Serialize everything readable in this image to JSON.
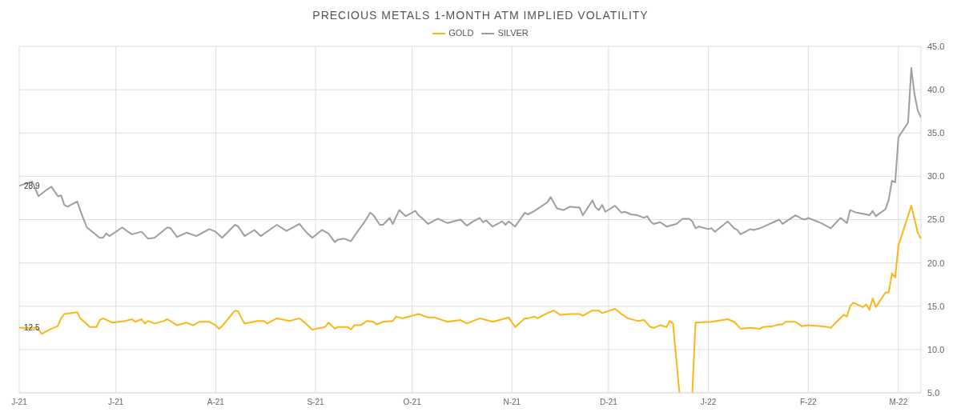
{
  "chart_data": {
    "type": "line",
    "title": "PRECIOUS METALS 1-MONTH ATM IMPLIED VOLATILITY",
    "legend": "top",
    "grid": true,
    "xlim": [
      "2021-06-01",
      "2022-03-08"
    ],
    "xticks": [
      {
        "value": "2021-06-01",
        "label": "J-21"
      },
      {
        "value": "2021-07-01",
        "label": "J-21"
      },
      {
        "value": "2021-08-01",
        "label": "A-21"
      },
      {
        "value": "2021-09-01",
        "label": "S-21"
      },
      {
        "value": "2021-10-01",
        "label": "O-21"
      },
      {
        "value": "2021-11-01",
        "label": "N-21"
      },
      {
        "value": "2021-12-01",
        "label": "D-21"
      },
      {
        "value": "2022-01-01",
        "label": "J-22"
      },
      {
        "value": "2022-02-01",
        "label": "F-22"
      },
      {
        "value": "2022-03-01",
        "label": "M-22"
      }
    ],
    "ylim": [
      5,
      45
    ],
    "yticks": [
      {
        "value": 5,
        "label": "5.0"
      },
      {
        "value": 10,
        "label": "10.0"
      },
      {
        "value": 15,
        "label": "15.0"
      },
      {
        "value": 20,
        "label": "20.0"
      },
      {
        "value": 25,
        "label": "25.0"
      },
      {
        "value": 30,
        "label": "30.0"
      },
      {
        "value": 35,
        "label": "35.0"
      },
      {
        "value": 40,
        "label": "40.0"
      },
      {
        "value": 45,
        "label": "45.0"
      }
    ],
    "annotations": [
      {
        "text": "28.9",
        "x": "2021-06-01",
        "y": 28.9
      },
      {
        "text": "12.5",
        "x": "2021-06-01",
        "y": 12.5
      }
    ],
    "series": [
      {
        "name": "GOLD",
        "color": "#fdb515",
        "x": [
          "2021-06-01",
          "2021-06-06",
          "2021-06-07",
          "2021-06-08",
          "2021-06-11",
          "2021-06-13",
          "2021-06-14",
          "2021-06-15",
          "2021-06-19",
          "2021-06-20",
          "2021-06-23",
          "2021-06-25",
          "2021-06-26",
          "2021-06-27",
          "2021-06-30",
          "2021-07-02",
          "2021-07-04",
          "2021-07-06",
          "2021-07-07",
          "2021-07-09",
          "2021-07-10",
          "2021-07-11",
          "2021-07-13",
          "2021-07-16",
          "2021-07-17",
          "2021-07-20",
          "2021-07-23",
          "2021-07-25",
          "2021-07-27",
          "2021-07-30",
          "2021-08-01",
          "2021-08-02",
          "2021-08-03",
          "2021-08-07",
          "2021-08-08",
          "2021-08-09",
          "2021-08-10",
          "2021-08-14",
          "2021-08-16",
          "2021-08-17",
          "2021-08-20",
          "2021-08-24",
          "2021-08-27",
          "2021-08-29",
          "2021-08-31",
          "2021-09-04",
          "2021-09-05",
          "2021-09-07",
          "2021-09-08",
          "2021-09-11",
          "2021-09-12",
          "2021-09-13",
          "2021-09-15",
          "2021-09-17",
          "2021-09-19",
          "2021-09-20",
          "2021-09-22",
          "2021-09-25",
          "2021-09-26",
          "2021-09-28",
          "2021-10-01",
          "2021-10-03",
          "2021-10-06",
          "2021-10-08",
          "2021-10-12",
          "2021-10-16",
          "2021-10-18",
          "2021-10-20",
          "2021-10-22",
          "2021-10-24",
          "2021-10-26",
          "2021-10-29",
          "2021-10-31",
          "2021-11-02",
          "2021-11-05",
          "2021-11-06",
          "2021-11-08",
          "2021-11-09",
          "2021-11-12",
          "2021-11-14",
          "2021-11-16",
          "2021-11-19",
          "2021-11-22",
          "2021-11-23",
          "2021-11-26",
          "2021-11-28",
          "2021-11-29",
          "2021-12-03",
          "2021-12-05",
          "2021-12-07",
          "2021-12-10",
          "2021-12-12",
          "2021-12-14",
          "2021-12-15",
          "2021-12-17",
          "2021-12-19",
          "2021-12-20",
          "2021-12-21",
          "2021-12-23",
          "2021-12-25",
          "2021-12-27",
          "2021-12-28",
          "2022-01-02",
          "2022-01-07",
          "2022-01-09",
          "2022-01-11",
          "2022-01-14",
          "2022-01-17",
          "2022-01-18",
          "2022-01-21",
          "2022-01-23",
          "2022-01-24",
          "2022-01-25",
          "2022-01-28",
          "2022-01-30",
          "2022-02-01",
          "2022-02-05",
          "2022-02-07",
          "2022-02-08",
          "2022-02-12",
          "2022-02-13",
          "2022-02-14",
          "2022-02-15",
          "2022-02-18",
          "2022-02-19",
          "2022-02-20",
          "2022-02-21",
          "2022-02-22",
          "2022-02-25",
          "2022-02-26",
          "2022-02-27",
          "2022-02-28",
          "2022-03-01",
          "2022-03-05",
          "2022-03-07",
          "2022-03-08"
        ],
        "values": [
          12.5,
          12.5,
          12.3,
          11.8,
          12.4,
          12.7,
          13.6,
          14.1,
          14.3,
          13.6,
          12.6,
          12.6,
          13.4,
          13.6,
          13.1,
          13.2,
          13.3,
          13.5,
          13.2,
          13.5,
          13.0,
          13.3,
          13.0,
          13.3,
          13.5,
          12.8,
          13.1,
          12.8,
          13.2,
          13.2,
          12.8,
          12.4,
          12.7,
          14.5,
          14.4,
          13.6,
          13.0,
          13.3,
          13.3,
          13.0,
          13.6,
          13.3,
          13.6,
          13.0,
          12.3,
          12.6,
          13.1,
          12.4,
          12.6,
          12.6,
          12.3,
          12.8,
          12.8,
          13.3,
          13.2,
          12.9,
          13.2,
          13.3,
          13.8,
          13.6,
          13.9,
          14.1,
          13.7,
          13.7,
          13.2,
          13.4,
          13.0,
          13.3,
          13.6,
          13.4,
          13.2,
          13.5,
          13.7,
          12.6,
          13.6,
          13.6,
          13.8,
          13.6,
          14.2,
          14.5,
          14.0,
          14.1,
          14.1,
          13.9,
          14.5,
          14.5,
          14.2,
          14.7,
          14.1,
          13.6,
          13.3,
          13.4,
          12.6,
          12.5,
          12.8,
          12.6,
          13.3,
          13.0,
          5.0,
          null,
          5.0,
          13.1,
          13.2,
          13.5,
          13.2,
          12.4,
          12.5,
          12.4,
          12.6,
          12.7,
          12.9,
          12.9,
          13.2,
          13.2,
          12.7,
          12.8,
          12.7,
          12.6,
          12.5,
          14.0,
          13.8,
          15.0,
          15.4,
          14.9,
          15.2,
          14.6,
          15.9,
          14.9,
          16.6,
          16.6,
          18.8,
          18.3,
          22.0,
          26.6,
          23.5,
          22.8
        ]
      },
      {
        "name": "SILVER",
        "color": "#9e9e9e",
        "x": [
          "2021-06-01",
          "2021-06-05",
          "2021-06-07",
          "2021-06-09",
          "2021-06-11",
          "2021-06-13",
          "2021-06-14",
          "2021-06-15",
          "2021-06-16",
          "2021-06-19",
          "2021-06-20",
          "2021-06-22",
          "2021-06-26",
          "2021-06-27",
          "2021-06-28",
          "2021-06-29",
          "2021-07-03",
          "2021-07-04",
          "2021-07-06",
          "2021-07-09",
          "2021-07-11",
          "2021-07-13",
          "2021-07-17",
          "2021-07-18",
          "2021-07-20",
          "2021-07-23",
          "2021-07-26",
          "2021-07-30",
          "2021-08-01",
          "2021-08-03",
          "2021-08-07",
          "2021-08-08",
          "2021-08-10",
          "2021-08-13",
          "2021-08-15",
          "2021-08-20",
          "2021-08-23",
          "2021-08-27",
          "2021-08-29",
          "2021-08-31",
          "2021-09-03",
          "2021-09-05",
          "2021-09-07",
          "2021-09-08",
          "2021-09-10",
          "2021-09-12",
          "2021-09-14",
          "2021-09-16",
          "2021-09-18",
          "2021-09-19",
          "2021-09-21",
          "2021-09-22",
          "2021-09-24",
          "2021-09-25",
          "2021-09-27",
          "2021-09-29",
          "2021-10-02",
          "2021-10-03",
          "2021-10-04",
          "2021-10-06",
          "2021-10-09",
          "2021-10-12",
          "2021-10-16",
          "2021-10-18",
          "2021-10-20",
          "2021-10-22",
          "2021-10-23",
          "2021-10-24",
          "2021-10-26",
          "2021-10-29",
          "2021-10-30",
          "2021-10-31",
          "2021-11-02",
          "2021-11-05",
          "2021-11-06",
          "2021-11-08",
          "2021-11-12",
          "2021-11-13",
          "2021-11-15",
          "2021-11-17",
          "2021-11-19",
          "2021-11-21",
          "2021-11-22",
          "2021-11-23",
          "2021-11-26",
          "2021-11-27",
          "2021-11-28",
          "2021-11-29",
          "2021-11-30",
          "2021-12-03",
          "2021-12-05",
          "2021-12-06",
          "2021-12-08",
          "2021-12-10",
          "2021-12-12",
          "2021-12-13",
          "2021-12-14",
          "2021-12-15",
          "2021-12-17",
          "2021-12-19",
          "2021-12-22",
          "2021-12-24",
          "2021-12-26",
          "2021-12-27",
          "2021-12-28",
          "2021-12-29",
          "2022-01-01",
          "2022-01-02",
          "2022-01-03",
          "2022-01-04",
          "2022-01-07",
          "2022-01-09",
          "2022-01-10",
          "2022-01-11",
          "2022-01-14",
          "2022-01-15",
          "2022-01-17",
          "2022-01-23",
          "2022-01-24",
          "2022-01-28",
          "2022-01-30",
          "2022-01-31",
          "2022-02-01",
          "2022-02-05",
          "2022-02-07",
          "2022-02-08",
          "2022-02-11",
          "2022-02-13",
          "2022-02-14",
          "2022-02-16",
          "2022-02-19",
          "2022-02-20",
          "2022-02-21",
          "2022-02-22",
          "2022-02-25",
          "2022-02-26",
          "2022-02-27",
          "2022-02-28",
          "2022-03-01",
          "2022-03-04",
          "2022-03-05",
          "2022-03-06",
          "2022-03-07",
          "2022-03-08"
        ],
        "values": [
          28.9,
          29.4,
          27.7,
          28.3,
          28.8,
          27.7,
          27.8,
          26.7,
          26.5,
          27.1,
          26.0,
          24.1,
          22.9,
          22.9,
          23.4,
          23.1,
          24.1,
          23.8,
          23.3,
          23.6,
          22.8,
          22.9,
          24.1,
          24.0,
          23.0,
          23.5,
          23.1,
          23.9,
          23.6,
          22.9,
          24.4,
          24.2,
          23.1,
          23.8,
          23.1,
          24.4,
          23.7,
          24.5,
          23.6,
          22.9,
          23.8,
          23.4,
          22.4,
          22.7,
          22.8,
          22.5,
          23.6,
          24.6,
          25.8,
          25.5,
          24.4,
          24.4,
          25.2,
          24.5,
          26.1,
          25.4,
          26.0,
          25.5,
          25.2,
          24.5,
          25.1,
          24.6,
          25.0,
          24.3,
          24.8,
          25.2,
          24.7,
          24.9,
          24.2,
          24.8,
          24.4,
          24.8,
          24.2,
          25.8,
          25.6,
          26.0,
          27.0,
          27.6,
          26.3,
          26.1,
          26.5,
          26.4,
          26.4,
          25.5,
          27.2,
          26.4,
          26.1,
          26.7,
          25.9,
          26.6,
          25.8,
          25.9,
          25.6,
          25.5,
          25.2,
          25.4,
          24.8,
          24.5,
          24.7,
          24.2,
          24.5,
          25.1,
          25.1,
          24.8,
          24.0,
          24.2,
          23.9,
          24.0,
          23.6,
          23.9,
          24.8,
          24.0,
          23.8,
          23.3,
          23.9,
          23.8,
          24.0,
          25.0,
          24.5,
          25.5,
          25.1,
          25.0,
          25.2,
          24.6,
          24.2,
          24.0,
          25.2,
          24.6,
          26.1,
          25.8,
          25.6,
          25.5,
          26.0,
          25.4,
          26.2,
          27.3,
          29.5,
          29.3,
          34.5,
          36.2,
          42.5,
          39.5,
          37.6,
          36.8
        ]
      }
    ]
  }
}
